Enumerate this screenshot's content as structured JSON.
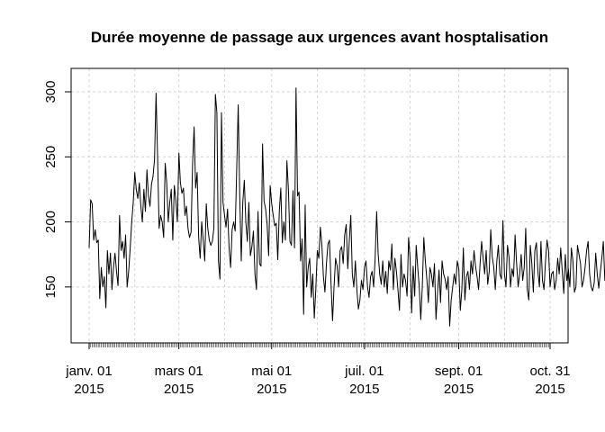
{
  "chart_data": {
    "type": "line",
    "title": "Durée moyenne de passage aux urgences avant hosptalisation",
    "xlabel": "",
    "ylabel": "",
    "x_range": [
      "2015-01-01",
      "2015-10-31"
    ],
    "ylim": [
      107,
      318
    ],
    "grid": true,
    "y_ticks": [
      {
        "value": 150,
        "label": "150"
      },
      {
        "value": 200,
        "label": "200"
      },
      {
        "value": 250,
        "label": "250"
      },
      {
        "value": 300,
        "label": "300"
      }
    ],
    "x_ticks": [
      {
        "date": "2015-01-01",
        "line1": "janv. 01",
        "line2": "2015"
      },
      {
        "date": "2015-03-01",
        "line1": "mars 01",
        "line2": "2015"
      },
      {
        "date": "2015-05-01",
        "line1": "mai 01",
        "line2": "2015"
      },
      {
        "date": "2015-07-01",
        "line1": "juil. 01",
        "line2": "2015"
      },
      {
        "date": "2015-09-01",
        "line1": "sept. 01",
        "line2": "2015"
      },
      {
        "date": "2015-10-31",
        "line1": "oct. 31",
        "line2": "2015"
      }
    ],
    "extra_gridline_dates": [
      "2015-01-31",
      "2015-03-31",
      "2015-05-31",
      "2015-07-31",
      "2015-10-01"
    ],
    "series": [
      {
        "name": "",
        "start_date": "2015-01-01",
        "values": [
          180,
          217,
          214,
          186,
          194,
          184,
          186,
          141,
          165,
          150,
          158,
          134,
          178,
          160,
          176,
          148,
          165,
          176,
          162,
          151,
          205,
          178,
          185,
          172,
          190,
          150,
          162,
          180,
          200,
          215,
          238,
          225,
          218,
          230,
          212,
          200,
          225,
          208,
          240,
          220,
          212,
          229,
          235,
          248,
          299,
          250,
          195,
          205,
          200,
          188,
          245,
          230,
          200,
          215,
          225,
          186,
          228,
          217,
          200,
          253,
          230,
          222,
          226,
          205,
          212,
          195,
          188,
          192,
          244,
          273,
          226,
          238,
          188,
          172,
          200,
          186,
          170,
          214,
          195,
          186,
          182,
          185,
          195,
          298,
          284,
          170,
          156,
          284,
          215,
          205,
          196,
          210,
          180,
          165,
          194,
          200,
          193,
          240,
          290,
          220,
          170,
          215,
          232,
          200,
          185,
          215,
          174,
          181,
          193,
          160,
          148,
          208,
          168,
          166,
          260,
          216,
          210,
          198,
          174,
          228,
          214,
          205,
          197,
          199,
          171,
          208,
          226,
          184,
          200,
          186,
          247,
          225,
          185,
          182,
          224,
          180,
          303,
          220,
          223,
          170,
          187,
          129,
          213,
          150,
          165,
          172,
          142,
          160,
          126,
          148,
          178,
          172,
          196,
          182,
          158,
          146,
          168,
          183,
          186,
          153,
          124,
          150,
          172,
          166,
          150,
          178,
          181,
          168,
          190,
          198,
          164,
          185,
          205,
          160,
          150,
          170,
          148,
          133,
          140,
          155,
          148,
          165,
          170,
          150,
          142,
          158,
          162,
          150,
          172,
          208,
          175,
          160,
          152,
          170,
          150,
          162,
          145,
          170,
          163,
          183,
          148,
          172,
          162,
          148,
          132,
          175,
          150,
          160,
          155,
          143,
          188,
          172,
          130,
          166,
          143,
          182,
          165,
          150,
          125,
          150,
          188,
          170,
          156,
          138,
          165,
          160,
          150,
          168,
          125,
          145,
          163,
          138,
          170,
          160,
          156,
          148,
          158,
          120,
          140,
          150,
          160,
          152,
          170,
          164,
          132,
          148,
          180,
          140,
          158,
          162,
          148,
          170,
          160,
          178,
          166,
          158,
          148,
          168,
          185,
          172,
          160,
          178,
          152,
          162,
          194,
          173,
          165,
          148,
          170,
          182,
          160,
          156,
          201,
          160,
          150,
          182,
          173,
          150,
          164,
          158,
          190,
          168,
          150,
          160,
          175,
          155,
          165,
          195,
          148,
          140,
          182,
          168,
          146,
          178,
          184,
          162,
          150,
          185,
          155,
          148,
          170,
          186,
          178,
          150,
          160,
          162,
          148,
          155,
          172,
          160,
          180,
          162,
          145,
          175,
          155,
          164,
          150,
          180,
          170,
          146,
          150,
          182,
          175,
          168,
          150,
          155,
          165,
          178,
          185,
          160,
          150,
          147,
          153,
          176,
          160,
          149,
          161,
          172,
          185,
          155,
          178,
          165,
          150,
          147,
          155,
          160,
          170,
          183,
          160,
          148,
          160,
          175,
          150,
          165,
          145,
          158,
          170,
          148,
          160,
          185,
          170,
          152,
          148,
          153
        ]
      }
    ]
  }
}
